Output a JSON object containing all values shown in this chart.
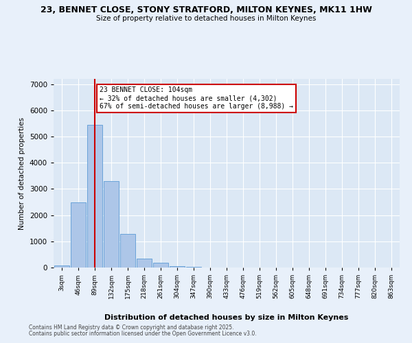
{
  "title_line1": "23, BENNET CLOSE, STONY STRATFORD, MILTON KEYNES, MK11 1HW",
  "title_line2": "Size of property relative to detached houses in Milton Keynes",
  "xlabel": "Distribution of detached houses by size in Milton Keynes",
  "ylabel": "Number of detached properties",
  "categories": [
    "3sqm",
    "46sqm",
    "89sqm",
    "132sqm",
    "175sqm",
    "218sqm",
    "261sqm",
    "304sqm",
    "347sqm",
    "390sqm",
    "433sqm",
    "476sqm",
    "519sqm",
    "562sqm",
    "605sqm",
    "648sqm",
    "691sqm",
    "734sqm",
    "777sqm",
    "820sqm",
    "863sqm"
  ],
  "values": [
    70,
    2500,
    5450,
    3300,
    1280,
    350,
    175,
    60,
    20,
    5,
    2,
    0,
    0,
    0,
    0,
    0,
    0,
    0,
    0,
    0,
    0
  ],
  "bar_color": "#adc6e8",
  "bar_edge_color": "#5b9bd5",
  "property_line_x": 2,
  "property_value": 104,
  "annotation_title": "23 BENNET CLOSE: 104sqm",
  "annotation_line1": "← 32% of detached houses are smaller (4,302)",
  "annotation_line2": "67% of semi-detached houses are larger (8,988) →",
  "annotation_box_color": "#ffffff",
  "annotation_box_edge": "#cc0000",
  "vline_color": "#cc0000",
  "ylim": [
    0,
    7200
  ],
  "yticks": [
    0,
    1000,
    2000,
    3000,
    4000,
    5000,
    6000,
    7000
  ],
  "fig_bg_color": "#e8f0fa",
  "ax_bg_color": "#dce8f5",
  "footnote1": "Contains HM Land Registry data © Crown copyright and database right 2025.",
  "footnote2": "Contains public sector information licensed under the Open Government Licence v3.0."
}
